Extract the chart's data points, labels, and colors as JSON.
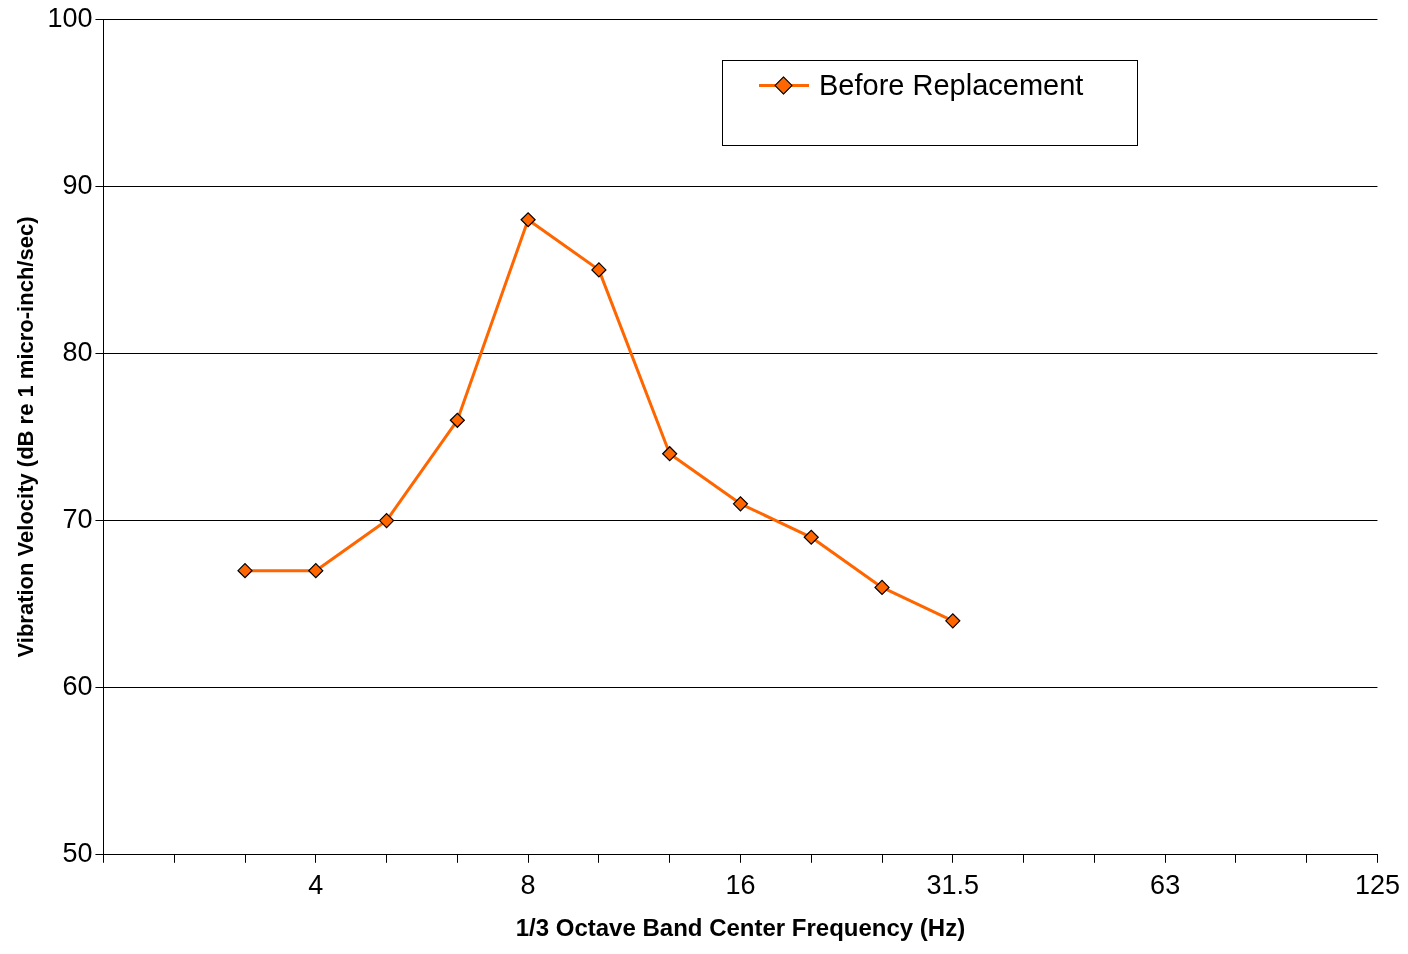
{
  "chart_data": {
    "type": "line",
    "xlabel": "1/3 Octave Band Center Frequency (Hz)",
    "ylabel": "Vibration Velocity (dB re 1 micro-inch/sec)",
    "categories": [
      null,
      null,
      null,
      "4",
      null,
      null,
      "8",
      null,
      null,
      "16",
      null,
      null,
      "31.5",
      null,
      null,
      "63",
      null,
      null,
      "125"
    ],
    "series": [
      {
        "name": "Before Replacement",
        "color": "#ff6600",
        "values": [
          null,
          null,
          67,
          67,
          70,
          76,
          88,
          85,
          74,
          71,
          69,
          66,
          64,
          null,
          null,
          null,
          null,
          null,
          null
        ]
      }
    ],
    "ylim": [
      50,
      100
    ],
    "yticks": [
      50,
      60,
      70,
      80,
      90,
      100
    ],
    "grid": "y",
    "legend": "top right",
    "marker": "diamond",
    "line_style": "solid"
  }
}
